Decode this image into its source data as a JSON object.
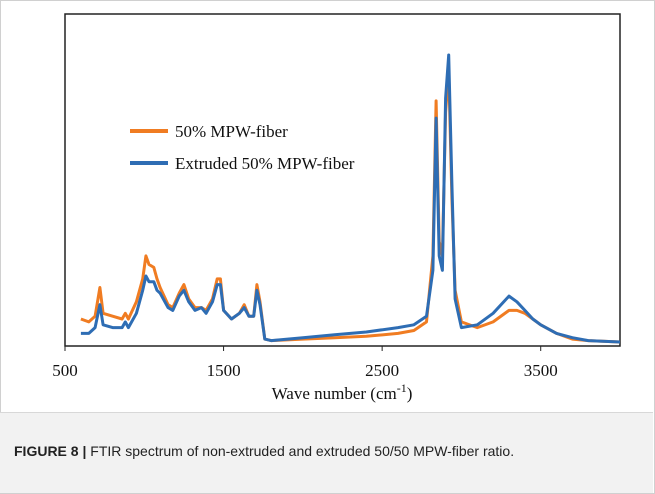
{
  "chart_data": {
    "type": "line",
    "title": "",
    "xlabel": "Wave number (cm",
    "xlabel_superscript": "-1",
    "xlabel_suffix": ")",
    "ylabel": "",
    "xlim": [
      500,
      4000
    ],
    "ylim": [
      0,
      100
    ],
    "x_ticks": [
      500,
      1500,
      2500,
      3500
    ],
    "x_tick_labels": [
      "500",
      "1500",
      "2500",
      "3500"
    ],
    "legend_position": "upper-left",
    "series": [
      {
        "name": "50% MPW-fiber",
        "color": "#f07c22",
        "points": [
          [
            600,
            8
          ],
          [
            650,
            7
          ],
          [
            690,
            9
          ],
          [
            720,
            19
          ],
          [
            740,
            10
          ],
          [
            800,
            9
          ],
          [
            860,
            8
          ],
          [
            880,
            10
          ],
          [
            900,
            8
          ],
          [
            950,
            14
          ],
          [
            990,
            22
          ],
          [
            1010,
            30
          ],
          [
            1030,
            27
          ],
          [
            1060,
            26
          ],
          [
            1080,
            22
          ],
          [
            1100,
            19
          ],
          [
            1150,
            13
          ],
          [
            1180,
            12
          ],
          [
            1220,
            17
          ],
          [
            1250,
            20
          ],
          [
            1280,
            15
          ],
          [
            1320,
            12
          ],
          [
            1360,
            12
          ],
          [
            1390,
            11
          ],
          [
            1430,
            15
          ],
          [
            1460,
            22
          ],
          [
            1480,
            22
          ],
          [
            1500,
            11
          ],
          [
            1550,
            8
          ],
          [
            1600,
            10
          ],
          [
            1630,
            13
          ],
          [
            1660,
            9
          ],
          [
            1690,
            9
          ],
          [
            1710,
            20
          ],
          [
            1730,
            14
          ],
          [
            1760,
            1
          ],
          [
            1800,
            0.5
          ],
          [
            2000,
            1
          ],
          [
            2200,
            1.5
          ],
          [
            2400,
            2
          ],
          [
            2600,
            3
          ],
          [
            2700,
            4
          ],
          [
            2780,
            7
          ],
          [
            2820,
            30
          ],
          [
            2840,
            84
          ],
          [
            2860,
            35
          ],
          [
            2880,
            30
          ],
          [
            2900,
            80
          ],
          [
            2920,
            95
          ],
          [
            2940,
            50
          ],
          [
            2960,
            18
          ],
          [
            3000,
            7
          ],
          [
            3100,
            5
          ],
          [
            3200,
            7
          ],
          [
            3300,
            11
          ],
          [
            3350,
            11
          ],
          [
            3400,
            10
          ],
          [
            3450,
            8
          ],
          [
            3500,
            6
          ],
          [
            3600,
            3
          ],
          [
            3700,
            1
          ],
          [
            3800,
            0.5
          ],
          [
            4000,
            0
          ]
        ]
      },
      {
        "name": "Extruded 50% MPW-fiber",
        "color": "#2e6db4",
        "points": [
          [
            600,
            3
          ],
          [
            650,
            3
          ],
          [
            690,
            5
          ],
          [
            720,
            13
          ],
          [
            740,
            6
          ],
          [
            800,
            5
          ],
          [
            860,
            5
          ],
          [
            880,
            7
          ],
          [
            900,
            5
          ],
          [
            950,
            10
          ],
          [
            990,
            18
          ],
          [
            1010,
            23
          ],
          [
            1030,
            21
          ],
          [
            1060,
            21
          ],
          [
            1080,
            18
          ],
          [
            1100,
            17
          ],
          [
            1150,
            12
          ],
          [
            1180,
            11
          ],
          [
            1220,
            16
          ],
          [
            1250,
            18
          ],
          [
            1280,
            14
          ],
          [
            1320,
            11
          ],
          [
            1360,
            12
          ],
          [
            1390,
            10
          ],
          [
            1430,
            14
          ],
          [
            1460,
            20
          ],
          [
            1480,
            20
          ],
          [
            1500,
            11
          ],
          [
            1550,
            8
          ],
          [
            1600,
            10
          ],
          [
            1630,
            12
          ],
          [
            1660,
            9
          ],
          [
            1690,
            9
          ],
          [
            1710,
            18
          ],
          [
            1730,
            13
          ],
          [
            1760,
            1
          ],
          [
            1800,
            0.5
          ],
          [
            2000,
            1.5
          ],
          [
            2200,
            2.5
          ],
          [
            2400,
            3.5
          ],
          [
            2600,
            5
          ],
          [
            2700,
            6
          ],
          [
            2780,
            9
          ],
          [
            2820,
            25
          ],
          [
            2840,
            78
          ],
          [
            2860,
            30
          ],
          [
            2880,
            25
          ],
          [
            2900,
            85
          ],
          [
            2920,
            100
          ],
          [
            2940,
            55
          ],
          [
            2960,
            15
          ],
          [
            3000,
            5
          ],
          [
            3100,
            6
          ],
          [
            3200,
            10
          ],
          [
            3300,
            16
          ],
          [
            3350,
            14
          ],
          [
            3400,
            11
          ],
          [
            3450,
            8
          ],
          [
            3500,
            6
          ],
          [
            3600,
            3
          ],
          [
            3700,
            1.5
          ],
          [
            3800,
            0.5
          ],
          [
            4000,
            0
          ]
        ]
      }
    ]
  },
  "caption": {
    "label": "FIGURE 8 |",
    "text": " FTIR spectrum of non-extruded and extruded 50/50 MPW-fiber ratio."
  }
}
